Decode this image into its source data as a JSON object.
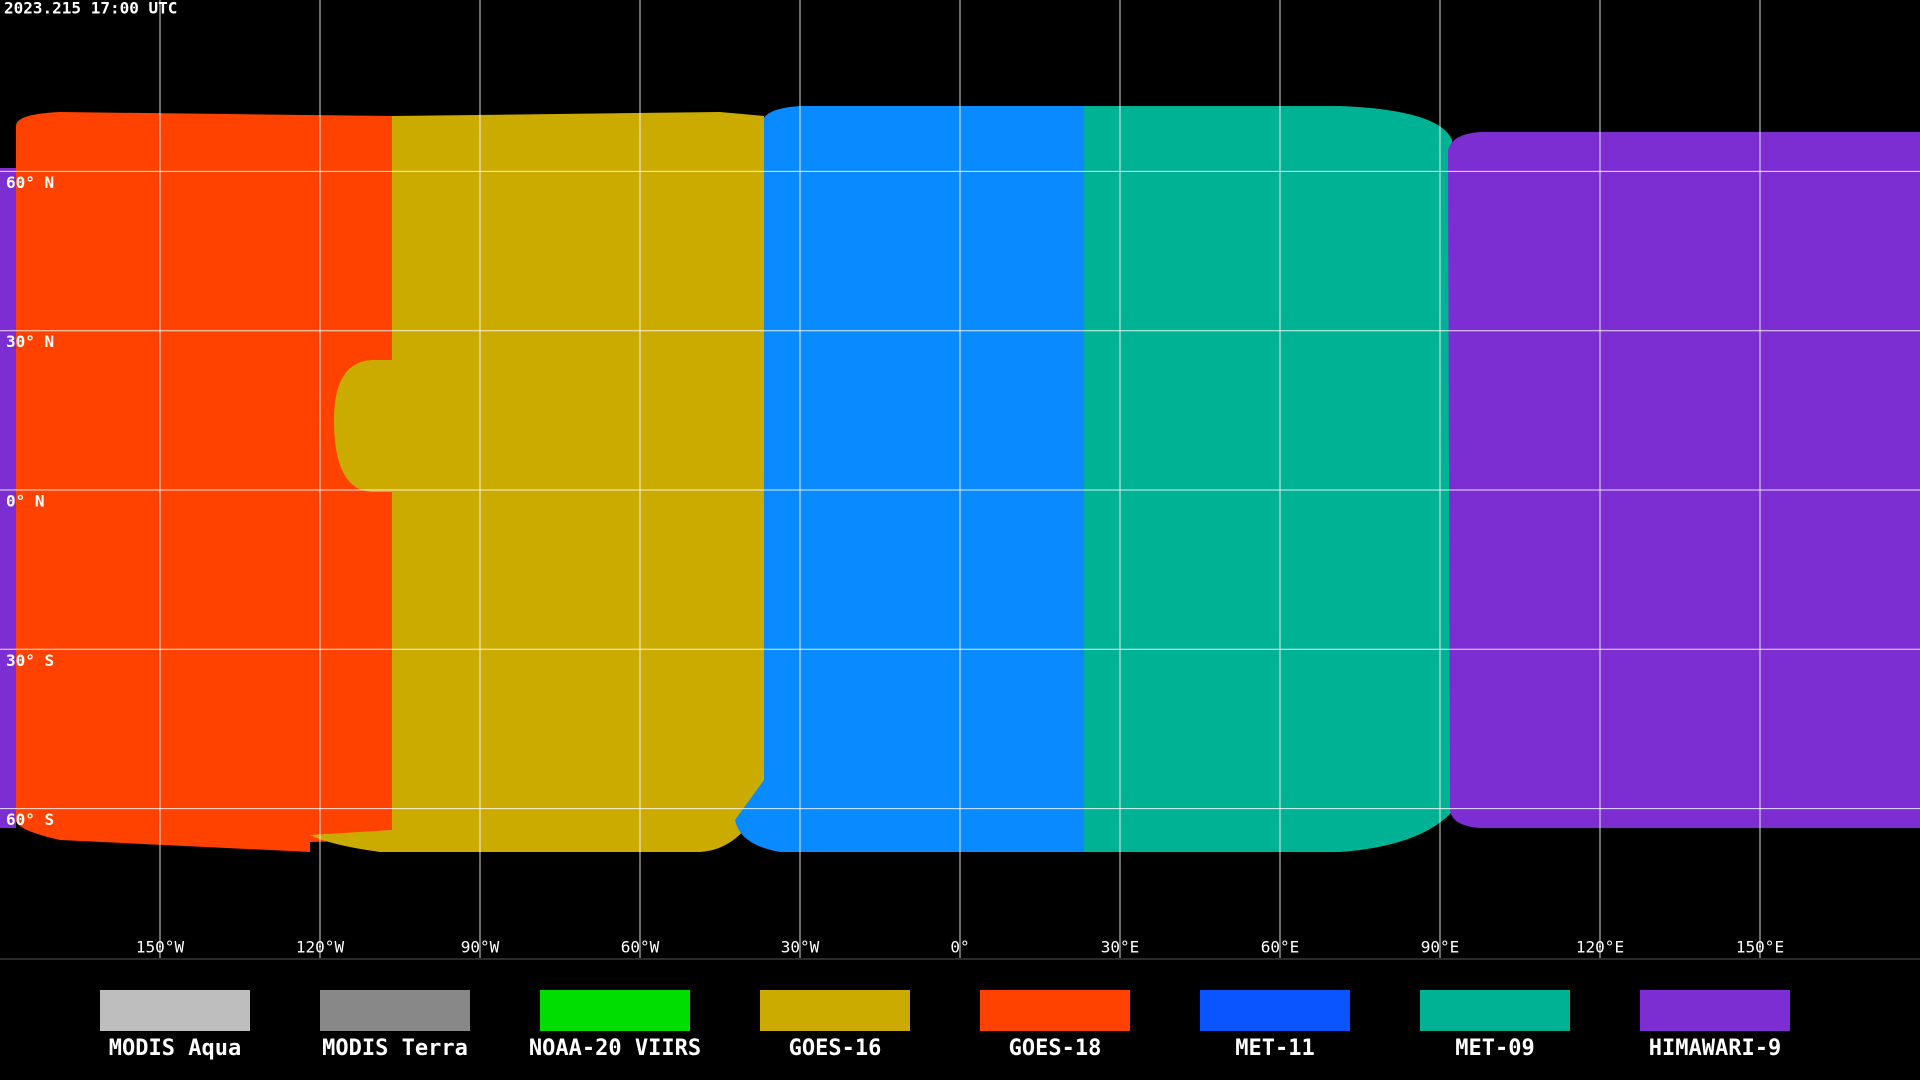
{
  "header": {
    "timestamp": "2023.215 17:00 UTC"
  },
  "grid": {
    "latitude_labels": [
      "60° N",
      "30° N",
      "0° N",
      "30° S",
      "60° S"
    ],
    "longitude_labels": [
      "150°W",
      "120°W",
      "90°W",
      "60°W",
      "30°W",
      "0°",
      "30°E",
      "60°E",
      "90°E",
      "120°E",
      "150°E"
    ]
  },
  "legend": [
    {
      "label": "MODIS Aqua",
      "color": "#bebebe"
    },
    {
      "label": "MODIS Terra",
      "color": "#888888"
    },
    {
      "label": "NOAA-20 VIIRS",
      "color": "#00dd00"
    },
    {
      "label": "GOES-16",
      "color": "#ccab00"
    },
    {
      "label": "GOES-18",
      "color": "#ff4200"
    },
    {
      "label": "MET-11",
      "color": "#0a55ff"
    },
    {
      "label": "MET-09",
      "color": "#00b294"
    },
    {
      "label": "HIMAWARI-9",
      "color": "#7c2ed2"
    }
  ]
}
